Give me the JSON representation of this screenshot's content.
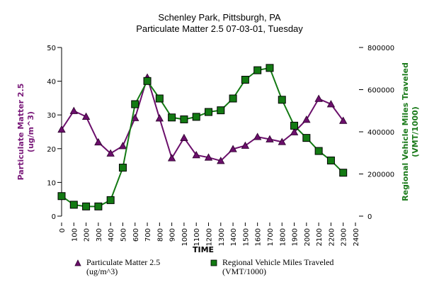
{
  "chart_data": {
    "type": "line",
    "title": "Schenley Park, Pittsburgh, PA",
    "subtitle": "Particulate Matter 2.5 07-03-01, Tuesday",
    "xlabel": "TIME",
    "ylabel_left": "Particulate Matter 2.5 (ug/m^3)",
    "ylabel_left_lines": [
      "Particulate Matter 2.5",
      "(ug/m^3)"
    ],
    "ylabel_right": "Regional Vehicle Miles Traveled (VMT/1000)",
    "ylabel_right_lines": [
      "Regional Vehicle Miles Traveled",
      "(VMT/1000)"
    ],
    "x_ticks": [
      "0",
      "100",
      "200",
      "300",
      "400",
      "500",
      "600",
      "700",
      "800",
      "900",
      "1000",
      "1100",
      "1200",
      "1300",
      "1400",
      "1500",
      "1600",
      "1700",
      "1800",
      "1900",
      "2000",
      "2100",
      "2200",
      "2300",
      "2400"
    ],
    "x": [
      0,
      100,
      200,
      300,
      400,
      500,
      600,
      700,
      800,
      900,
      1000,
      1100,
      1200,
      1300,
      1400,
      1500,
      1600,
      1700,
      1800,
      1900,
      2000,
      2100,
      2200,
      2300
    ],
    "xlim": [
      0,
      2400
    ],
    "y_left_ticks": [
      "0",
      "10",
      "20",
      "30",
      "40",
      "50"
    ],
    "ylim_left": [
      0,
      50
    ],
    "y_right_ticks": [
      "0",
      "200000",
      "400000",
      "600000",
      "800000"
    ],
    "ylim_right": [
      0,
      800000
    ],
    "grid": false,
    "legend_position": "bottom",
    "series": [
      {
        "name": "Particulate Matter 2.5 (ug/m^3)",
        "legend_lines": [
          "Particulate Matter 2.5",
          "(ug/m^3)"
        ],
        "axis": "left",
        "marker": "triangle",
        "color": "#6b0f6b",
        "values": [
          25.7,
          31.2,
          29.5,
          21.9,
          18.6,
          20.8,
          29.1,
          41.1,
          29.0,
          17.2,
          23.2,
          18.1,
          17.4,
          16.4,
          19.9,
          20.9,
          23.5,
          22.8,
          22.0,
          24.9,
          28.6,
          34.8,
          33.2,
          28.3
        ]
      },
      {
        "name": "Regional Vehicle Miles Traveled (VMT/1000)",
        "legend_lines": [
          "Regional Vehicle Miles Traveled",
          "(VMT/1000)"
        ],
        "axis": "right",
        "marker": "square",
        "color": "#137a13",
        "values": [
          95000,
          54000,
          46000,
          46000,
          76000,
          230000,
          531000,
          641000,
          558000,
          468000,
          459000,
          471000,
          494000,
          502000,
          558000,
          647000,
          692000,
          703000,
          552000,
          429000,
          371000,
          309000,
          264000,
          206000
        ]
      }
    ]
  }
}
